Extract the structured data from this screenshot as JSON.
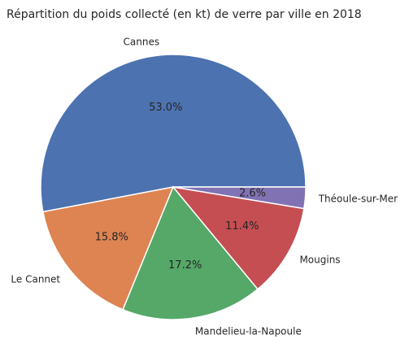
{
  "chart_data": {
    "type": "pie",
    "title": "Répartition du poids collecté (en kt) de verre par ville en 2018",
    "slices": [
      {
        "label": "Cannes",
        "value": 53.0,
        "pct_label": "53.0%",
        "color": "#4C72B0"
      },
      {
        "label": "Le Cannet",
        "value": 15.8,
        "pct_label": "15.8%",
        "color": "#DD8452"
      },
      {
        "label": "Mandelieu-la-Napoule",
        "value": 17.2,
        "pct_label": "17.2%",
        "color": "#55A868"
      },
      {
        "label": "Mougins",
        "value": 11.4,
        "pct_label": "11.4%",
        "color": "#C44E52"
      },
      {
        "label": "Théoule-sur-Mer",
        "value": 2.6,
        "pct_label": "2.6%",
        "color": "#8172B3"
      }
    ],
    "start_angle_deg": 0,
    "direction": "counterclockwise",
    "legend": "none"
  }
}
